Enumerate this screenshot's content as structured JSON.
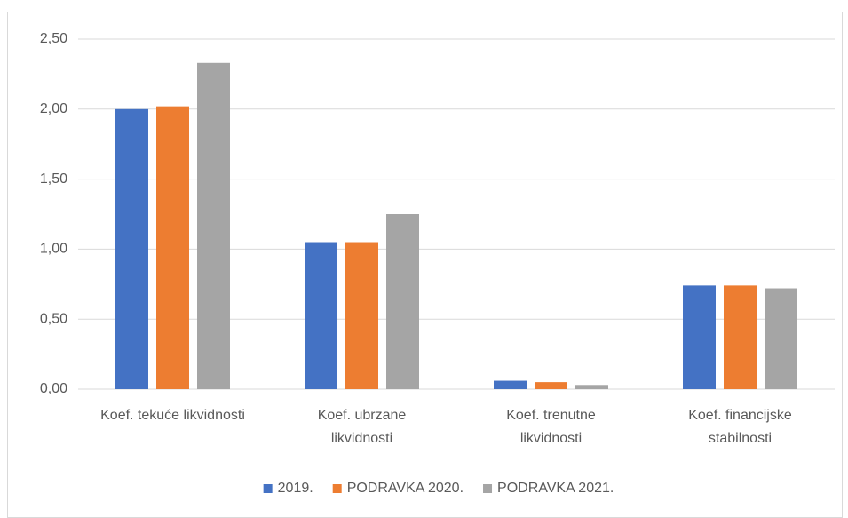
{
  "chart_data": {
    "type": "bar",
    "categories": [
      "Koef. tekuće likvidnosti",
      "Koef. ubrzane likvidnosti",
      "Koef. trenutne likvidnosti",
      "Koef. financijske stabilnosti"
    ],
    "series": [
      {
        "name": "2019.",
        "color": "#4472c4",
        "values": [
          2.0,
          1.05,
          0.06,
          0.74
        ]
      },
      {
        "name": "PODRAVKA 2020.",
        "color": "#ed7d31",
        "values": [
          2.02,
          1.05,
          0.05,
          0.74
        ]
      },
      {
        "name": "PODRAVKA 2021.",
        "color": "#a5a5a5",
        "values": [
          2.33,
          1.25,
          0.03,
          0.72
        ]
      }
    ],
    "ylim": [
      0,
      2.5
    ],
    "yticks": [
      {
        "value": 0,
        "label": "0,00"
      },
      {
        "value": 0.5,
        "label": "0,50"
      },
      {
        "value": 1,
        "label": "1,00"
      },
      {
        "value": 1.5,
        "label": "1,50"
      },
      {
        "value": 2,
        "label": "2,00"
      },
      {
        "value": 2.5,
        "label": "2,50"
      }
    ],
    "grid": true,
    "legend": "bottom"
  }
}
